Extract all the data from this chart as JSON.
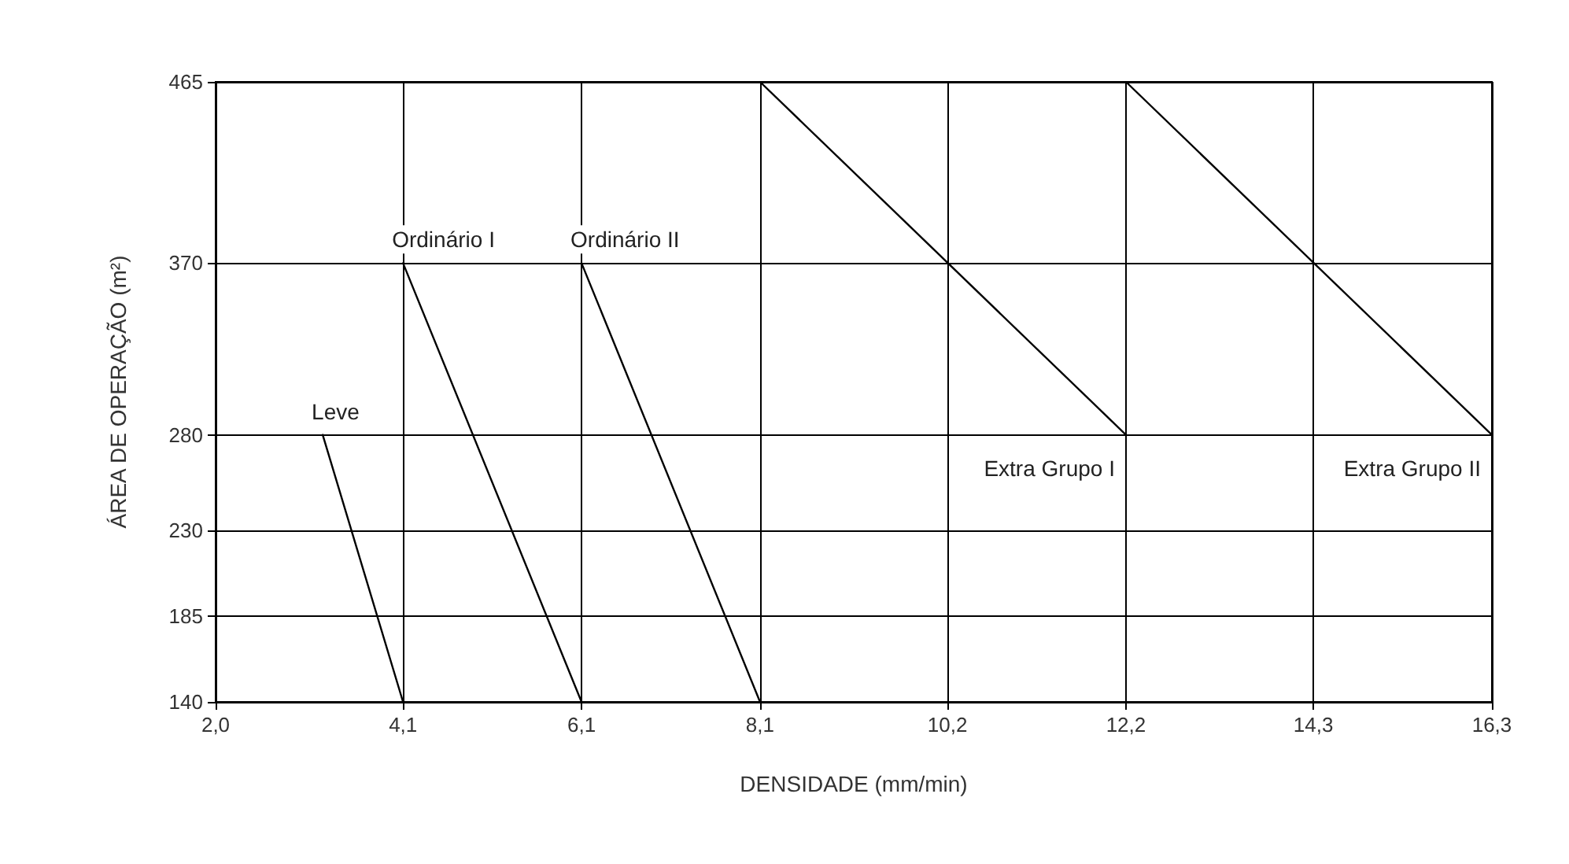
{
  "chart_data": {
    "type": "line",
    "xlabel": "DENSIDADE (mm/min)",
    "ylabel": "ÁREA DE OPERAÇÃO (m²)",
    "series": [
      {
        "name": "Leve",
        "color": "#000000",
        "x": [
          3.2,
          4.1
        ],
        "values": [
          280,
          140
        ]
      },
      {
        "name": "Ordinário I",
        "color": "#000000",
        "x": [
          4.1,
          6.1
        ],
        "values": [
          370,
          140
        ]
      },
      {
        "name": "Ordinário II",
        "color": "#000000",
        "x": [
          6.1,
          8.1
        ],
        "values": [
          370,
          140
        ]
      },
      {
        "name": "Extra Grupo I",
        "color": "#000000",
        "x": [
          8.1,
          12.2
        ],
        "values": [
          465,
          280
        ]
      },
      {
        "name": "Extra Grupo II",
        "color": "#000000",
        "x": [
          12.2,
          16.3
        ],
        "values": [
          465,
          280
        ]
      }
    ],
    "xlim": [
      2.0,
      16.3
    ],
    "xticks": [
      {
        "value": 2.0,
        "label": "2,0"
      },
      {
        "value": 4.1,
        "label": "4,1"
      },
      {
        "value": 6.1,
        "label": "6,1"
      },
      {
        "value": 8.1,
        "label": "8,1"
      },
      {
        "value": 10.2,
        "label": "10,2"
      },
      {
        "value": 12.2,
        "label": "12,2"
      },
      {
        "value": 14.3,
        "label": "14,3"
      },
      {
        "value": 16.3,
        "label": "16,3"
      }
    ],
    "ylim": [
      140,
      465
    ],
    "yticks": [
      140,
      185,
      230,
      280,
      370,
      465
    ],
    "grid": true,
    "marker": "none",
    "line_style": "solid",
    "legend": false
  }
}
